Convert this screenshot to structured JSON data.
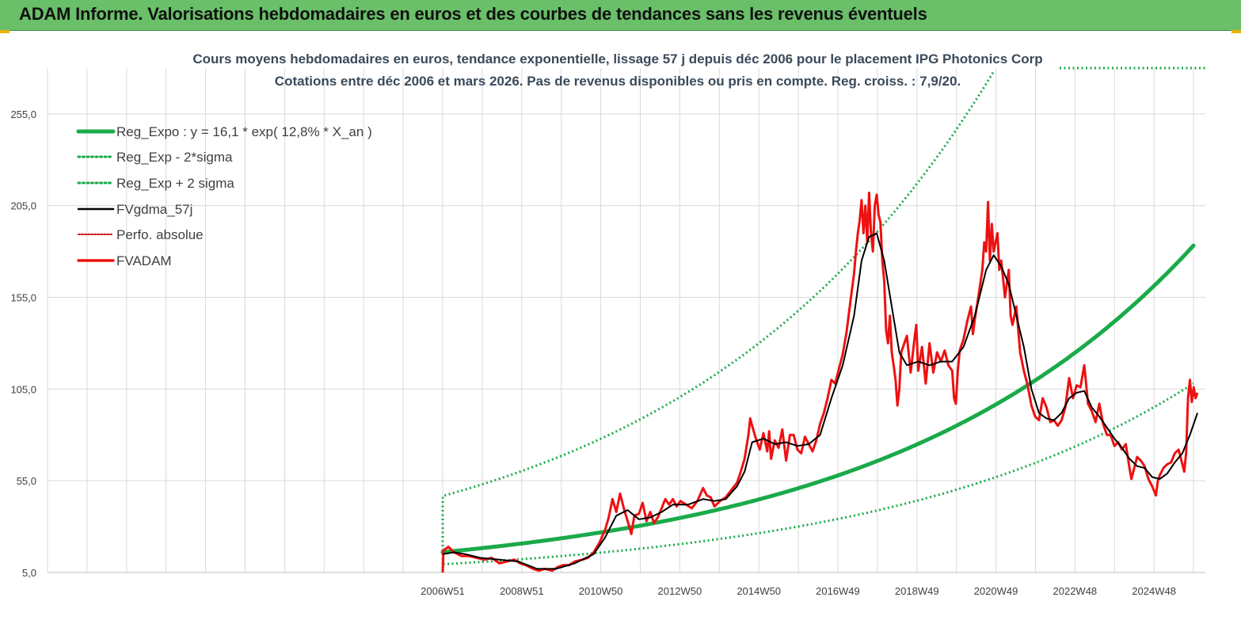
{
  "header": {
    "title": "ADAM Informe. Valorisations hebdomadaires en euros et des courbes de tendances sans les revenus éventuels"
  },
  "colors": {
    "banner": "#6abf69",
    "trend": "#1aaa4a",
    "band": "#1aaa4a",
    "smooth": "#000000",
    "price": "#ee1111",
    "perfo": "#cc0000",
    "grid": "#d9d9d9"
  },
  "chart_data": {
    "type": "line",
    "title_line1": "Cours moyens hebdomadaires en euros, tendance exponentielle, lissage 57 j depuis déc 2006 pour le placement IPG Photonics Corp",
    "title_line2": "Cotations entre déc 2006 et mars 2026. Pas de revenus disponibles ou pris en compte. Reg. croiss. : 7,9/20.",
    "y_ticks": [
      "5,0",
      "55,0",
      "105,0",
      "155,0",
      "205,0",
      "255,0"
    ],
    "y_tick_values": [
      5,
      55,
      105,
      155,
      205,
      255
    ],
    "ylim": [
      5,
      280
    ],
    "xlim": [
      -10,
      19.3
    ],
    "x_ticks": [
      "2006W51",
      "2008W51",
      "2010W50",
      "2012W50",
      "2014W50",
      "2016W49",
      "2018W49",
      "2020W49",
      "2022W48",
      "2024W48"
    ],
    "x_tick_positions": [
      0,
      2,
      4,
      6,
      8,
      10,
      12,
      14,
      16,
      18
    ],
    "grid": true,
    "legend_position": "top-left",
    "legend": [
      {
        "label": "Reg_Expo : y = 16,1 * exp( 12,8% *  X_an )",
        "style": "thick"
      },
      {
        "label": "Reg_Exp - 2*sigma",
        "style": "dotted"
      },
      {
        "label": "Reg_Exp + 2 sigma",
        "style": "dotted"
      },
      {
        "label": "FVgdma_57j",
        "style": "solid"
      },
      {
        "label": "Perfo. absolue",
        "style": "dotted-red"
      },
      {
        "label": "FVADAM",
        "style": "solid-red"
      }
    ],
    "series": [
      {
        "name": "FVADAM",
        "points": [
          [
            0,
            5
          ],
          [
            0.02,
            17
          ],
          [
            0.15,
            19
          ],
          [
            0.3,
            16
          ],
          [
            0.5,
            14
          ],
          [
            0.7,
            14
          ],
          [
            0.9,
            13
          ],
          [
            1.1,
            12
          ],
          [
            1.3,
            13
          ],
          [
            1.5,
            10
          ],
          [
            1.7,
            11
          ],
          [
            1.9,
            12
          ],
          [
            2.05,
            10
          ],
          [
            2.2,
            9
          ],
          [
            2.4,
            7
          ],
          [
            2.55,
            6
          ],
          [
            2.7,
            7
          ],
          [
            2.9,
            6
          ],
          [
            3.05,
            8
          ],
          [
            3.2,
            9
          ],
          [
            3.35,
            9
          ],
          [
            3.5,
            11
          ],
          [
            3.7,
            12
          ],
          [
            3.85,
            13
          ],
          [
            4.0,
            16
          ],
          [
            4.15,
            21
          ],
          [
            4.3,
            28
          ],
          [
            4.4,
            35
          ],
          [
            4.5,
            45
          ],
          [
            4.6,
            38
          ],
          [
            4.7,
            48
          ],
          [
            4.8,
            40
          ],
          [
            4.9,
            33
          ],
          [
            5.0,
            26
          ],
          [
            5.08,
            36
          ],
          [
            5.2,
            37
          ],
          [
            5.3,
            43
          ],
          [
            5.4,
            33
          ],
          [
            5.5,
            38
          ],
          [
            5.6,
            32
          ],
          [
            5.7,
            35
          ],
          [
            5.8,
            40
          ],
          [
            5.9,
            45
          ],
          [
            6.0,
            42
          ],
          [
            6.1,
            45
          ],
          [
            6.2,
            41
          ],
          [
            6.3,
            44
          ],
          [
            6.45,
            42
          ],
          [
            6.6,
            40
          ],
          [
            6.75,
            44
          ],
          [
            6.9,
            51
          ],
          [
            7.0,
            47
          ],
          [
            7.1,
            46
          ],
          [
            7.2,
            41
          ],
          [
            7.35,
            44
          ],
          [
            7.5,
            46
          ],
          [
            7.65,
            50
          ],
          [
            7.8,
            54
          ],
          [
            7.9,
            60
          ],
          [
            8.0,
            67
          ],
          [
            8.1,
            80
          ],
          [
            8.15,
            89
          ],
          [
            8.2,
            85
          ],
          [
            8.3,
            78
          ],
          [
            8.4,
            72
          ],
          [
            8.5,
            81
          ],
          [
            8.6,
            71
          ],
          [
            8.65,
            82
          ],
          [
            8.7,
            67
          ],
          [
            8.8,
            77
          ],
          [
            8.9,
            73
          ],
          [
            9.0,
            83
          ],
          [
            9.1,
            66
          ],
          [
            9.2,
            80
          ],
          [
            9.3,
            80
          ],
          [
            9.4,
            72
          ],
          [
            9.5,
            70
          ],
          [
            9.6,
            79
          ],
          [
            9.7,
            75
          ],
          [
            9.8,
            71
          ],
          [
            9.9,
            77
          ],
          [
            10.0,
            86
          ],
          [
            10.1,
            92
          ],
          [
            10.2,
            100
          ],
          [
            10.3,
            110
          ],
          [
            10.4,
            108
          ],
          [
            10.5,
            116
          ],
          [
            10.6,
            124
          ],
          [
            10.7,
            136
          ],
          [
            10.8,
            152
          ],
          [
            10.9,
            168
          ],
          [
            10.95,
            180
          ],
          [
            11.0,
            190
          ],
          [
            11.05,
            197
          ],
          [
            11.1,
            208
          ],
          [
            11.15,
            190
          ],
          [
            11.2,
            205
          ],
          [
            11.25,
            185
          ],
          [
            11.3,
            212
          ],
          [
            11.35,
            190
          ],
          [
            11.4,
            180
          ],
          [
            11.45,
            205
          ],
          [
            11.5,
            211
          ],
          [
            11.55,
            200
          ],
          [
            11.6,
            196
          ],
          [
            11.65,
            175
          ],
          [
            11.7,
            164
          ],
          [
            11.75,
            137
          ],
          [
            11.8,
            130
          ],
          [
            11.85,
            145
          ],
          [
            11.9,
            125
          ],
          [
            11.95,
            118
          ],
          [
            12.0,
            110
          ],
          [
            12.05,
            96
          ],
          [
            12.1,
            105
          ],
          [
            12.15,
            125
          ],
          [
            12.2,
            128
          ],
          [
            12.3,
            134
          ],
          [
            12.4,
            114
          ],
          [
            12.5,
            132
          ],
          [
            12.55,
            140
          ],
          [
            12.6,
            115
          ],
          [
            12.7,
            128
          ],
          [
            12.8,
            108
          ],
          [
            12.9,
            130
          ],
          [
            13.0,
            114
          ],
          [
            13.1,
            125
          ],
          [
            13.2,
            120
          ],
          [
            13.3,
            126
          ],
          [
            13.4,
            118
          ],
          [
            13.5,
            115
          ],
          [
            13.55,
            100
          ],
          [
            13.6,
            97
          ],
          [
            13.65,
            115
          ],
          [
            13.7,
            126
          ],
          [
            13.8,
            132
          ],
          [
            13.9,
            142
          ],
          [
            14.0,
            150
          ],
          [
            14.05,
            135
          ],
          [
            14.1,
            143
          ],
          [
            14.2,
            156
          ],
          [
            14.3,
            170
          ],
          [
            14.35,
            185
          ],
          [
            14.4,
            180
          ],
          [
            14.45,
            207
          ],
          [
            14.5,
            175
          ],
          [
            14.55,
            195
          ],
          [
            14.6,
            180
          ],
          [
            14.7,
            190
          ],
          [
            14.75,
            170
          ],
          [
            14.8,
            175
          ],
          [
            14.9,
            155
          ],
          [
            15.0,
            170
          ],
          [
            15.05,
            145
          ],
          [
            15.1,
            140
          ],
          [
            15.2,
            150
          ],
          [
            15.3,
            125
          ],
          [
            15.4,
            115
          ],
          [
            15.5,
            107
          ],
          [
            15.6,
            96
          ],
          [
            15.7,
            90
          ],
          [
            15.8,
            88
          ],
          [
            15.9,
            100
          ],
          [
            16.0,
            95
          ],
          [
            16.1,
            87
          ],
          [
            16.2,
            88
          ],
          [
            16.3,
            85
          ],
          [
            16.4,
            88
          ],
          [
            16.5,
            95
          ],
          [
            16.6,
            111
          ],
          [
            16.7,
            100
          ],
          [
            16.8,
            107
          ],
          [
            16.9,
            106
          ],
          [
            17.0,
            118
          ],
          [
            17.05,
            108
          ],
          [
            17.1,
            97
          ],
          [
            17.2,
            93
          ],
          [
            17.3,
            87
          ],
          [
            17.4,
            97
          ],
          [
            17.5,
            86
          ],
          [
            17.6,
            80
          ],
          [
            17.7,
            80
          ],
          [
            17.8,
            74
          ],
          [
            17.9,
            76
          ],
          [
            18.0,
            72
          ],
          [
            18.1,
            75
          ],
          [
            18.2,
            62
          ],
          [
            18.25,
            56
          ],
          [
            18.3,
            60
          ],
          [
            18.4,
            68
          ],
          [
            18.5,
            66
          ],
          [
            18.6,
            63
          ],
          [
            18.7,
            56
          ],
          [
            18.8,
            52
          ],
          [
            18.9,
            47
          ],
          [
            18.95,
            55
          ],
          [
            19.0,
            58
          ],
          [
            19.1,
            62
          ],
          [
            19.2,
            64
          ],
          [
            19.3,
            65
          ],
          [
            19.4,
            70
          ],
          [
            19.5,
            72
          ],
          [
            19.6,
            64
          ],
          [
            19.65,
            60
          ],
          [
            19.7,
            70
          ],
          [
            19.75,
            100
          ],
          [
            19.8,
            110
          ],
          [
            19.85,
            98
          ],
          [
            19.9,
            106
          ],
          [
            19.95,
            100
          ],
          [
            20.0,
            103
          ]
        ]
      },
      {
        "name": "FVgdma_57j",
        "points": [
          [
            0,
            15
          ],
          [
            0.3,
            16
          ],
          [
            0.6,
            15
          ],
          [
            1.0,
            13
          ],
          [
            1.5,
            12
          ],
          [
            2.0,
            11
          ],
          [
            2.5,
            7
          ],
          [
            3.0,
            7
          ],
          [
            3.5,
            10
          ],
          [
            4.0,
            15
          ],
          [
            4.3,
            24
          ],
          [
            4.6,
            36
          ],
          [
            4.9,
            39
          ],
          [
            5.2,
            34
          ],
          [
            5.5,
            35
          ],
          [
            5.8,
            38
          ],
          [
            6.1,
            42
          ],
          [
            6.5,
            42
          ],
          [
            6.9,
            45
          ],
          [
            7.2,
            44
          ],
          [
            7.5,
            45
          ],
          [
            7.8,
            52
          ],
          [
            8.0,
            60
          ],
          [
            8.2,
            76
          ],
          [
            8.5,
            78
          ],
          [
            8.8,
            75
          ],
          [
            9.1,
            76
          ],
          [
            9.4,
            74
          ],
          [
            9.7,
            75
          ],
          [
            10.0,
            80
          ],
          [
            10.3,
            100
          ],
          [
            10.6,
            118
          ],
          [
            10.9,
            145
          ],
          [
            11.1,
            175
          ],
          [
            11.3,
            188
          ],
          [
            11.5,
            190
          ],
          [
            11.7,
            175
          ],
          [
            11.9,
            150
          ],
          [
            12.1,
            125
          ],
          [
            12.3,
            118
          ],
          [
            12.6,
            120
          ],
          [
            12.9,
            118
          ],
          [
            13.2,
            120
          ],
          [
            13.5,
            120
          ],
          [
            13.8,
            128
          ],
          [
            14.1,
            145
          ],
          [
            14.4,
            170
          ],
          [
            14.6,
            178
          ],
          [
            14.8,
            172
          ],
          [
            15.0,
            162
          ],
          [
            15.2,
            145
          ],
          [
            15.4,
            128
          ],
          [
            15.6,
            105
          ],
          [
            15.8,
            92
          ],
          [
            16.0,
            89
          ],
          [
            16.2,
            88
          ],
          [
            16.4,
            92
          ],
          [
            16.6,
            100
          ],
          [
            16.8,
            103
          ],
          [
            17.0,
            104
          ],
          [
            17.2,
            95
          ],
          [
            17.4,
            90
          ],
          [
            17.6,
            84
          ],
          [
            17.8,
            78
          ],
          [
            18.0,
            73
          ],
          [
            18.2,
            67
          ],
          [
            18.4,
            63
          ],
          [
            18.6,
            62
          ],
          [
            18.8,
            57
          ],
          [
            19.0,
            56
          ],
          [
            19.2,
            59
          ],
          [
            19.4,
            65
          ],
          [
            19.6,
            70
          ],
          [
            19.8,
            80
          ],
          [
            20.0,
            92
          ]
        ]
      }
    ]
  }
}
